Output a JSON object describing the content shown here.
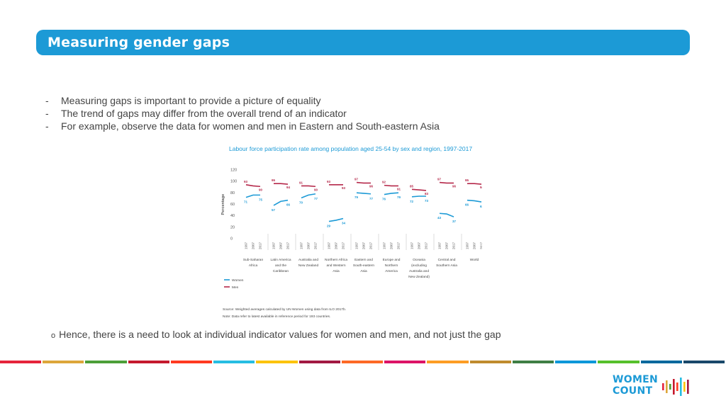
{
  "header": {
    "title": "Measuring gender gaps"
  },
  "bullets": [
    "Measuring gaps is important to provide a picture of equality",
    "The trend of gaps may differ from the overall trend of an indicator",
    "For example, observe the data for women and men in Eastern and South-eastern Asia"
  ],
  "bullet_marker": "-",
  "chart_data": {
    "type": "line",
    "title": "Labour force participation rate among population aged 25-54 by sex and region, 1997-2017",
    "ylabel": "Percentage",
    "ylim": [
      0,
      120
    ],
    "yticks": [
      0,
      20,
      40,
      60,
      80,
      100,
      120
    ],
    "years": [
      "1997",
      "2007",
      "2017"
    ],
    "regions": [
      {
        "label": [
          "Sub-Saharan",
          "Africa"
        ],
        "women": [
          71,
          75,
          75
        ],
        "men": [
          93,
          91,
          90
        ],
        "women_labels": [
          "71",
          "75"
        ],
        "men_labels": [
          "93",
          "90"
        ]
      },
      {
        "label": [
          "Latin America",
          "and the",
          "Caribbean"
        ],
        "women": [
          57,
          64,
          66
        ],
        "men": [
          95,
          95,
          94
        ],
        "women_labels": [
          "57",
          "66"
        ],
        "men_labels": [
          "95",
          "94"
        ]
      },
      {
        "label": [
          "Australia and",
          "New Zealand"
        ],
        "women": [
          70,
          75,
          77
        ],
        "men": [
          91,
          91,
          90
        ],
        "women_labels": [
          "70",
          "77"
        ],
        "men_labels": [
          "91",
          "90"
        ]
      },
      {
        "label": [
          "Northern Africa",
          "and Western",
          "Asia"
        ],
        "women": [
          29,
          31,
          34
        ],
        "men": [
          93,
          93,
          93
        ],
        "women_labels": [
          "29",
          "34"
        ],
        "men_labels": [
          "93",
          "93"
        ]
      },
      {
        "label": [
          "Eastern and",
          "South-eastern",
          "Asia"
        ],
        "women": [
          79,
          78,
          77
        ],
        "men": [
          97,
          96,
          96
        ],
        "women_labels": [
          "79",
          "77"
        ],
        "men_labels": [
          "97",
          "96"
        ]
      },
      {
        "label": [
          "Europe and",
          "Northern",
          "America"
        ],
        "women": [
          76,
          78,
          79
        ],
        "men": [
          92,
          91,
          91
        ],
        "women_labels": [
          "76",
          "79"
        ],
        "men_labels": [
          "92",
          "91"
        ]
      },
      {
        "label": [
          "Oceania",
          "(excluding",
          "Australia and",
          "New Zealand)"
        ],
        "women": [
          72,
          73,
          73
        ],
        "men": [
          85,
          84,
          83
        ],
        "women_labels": [
          "72",
          "73"
        ],
        "men_labels": [
          "85",
          "83"
        ]
      },
      {
        "label": [
          "Central and",
          "Southern Asia"
        ],
        "women": [
          43,
          42,
          37
        ],
        "men": [
          97,
          96,
          96
        ],
        "women_labels": [
          "43",
          "37"
        ],
        "men_labels": [
          "97",
          "96"
        ]
      },
      {
        "label": [
          "World"
        ],
        "women": [
          66,
          65,
          63
        ],
        "men": [
          95,
          95,
          94
        ],
        "women_labels": [
          "66",
          "63"
        ],
        "men_labels": [
          "95",
          "94"
        ]
      }
    ],
    "series": [
      {
        "name": "Women",
        "color": "#1c9ad6"
      },
      {
        "name": "Men",
        "color": "#b5284a"
      }
    ],
    "source": "Source: Weighted averages calculated by UN Women using data from ILO 2017b.",
    "note": "Note: Data refer to latest available in reference period for 193 countries."
  },
  "conclusion": {
    "marker": "o",
    "text": "Hence, there is a need to look at individual indicator values for women and men, and not just the gap"
  },
  "footer": {
    "strip_colors": [
      "#e5243b",
      "#dda63a",
      "#4c9f38",
      "#c5192d",
      "#ff3a21",
      "#26bde2",
      "#fcc30b",
      "#a21942",
      "#fd6925",
      "#dd1367",
      "#fd9d24",
      "#bf8b2e",
      "#3f7e44",
      "#0a97d9",
      "#56c02b",
      "#00689d",
      "#19486a"
    ],
    "logo_line1": "WOMEN",
    "logo_line2": "COUNT",
    "logo_bar_colors": [
      "#e5243b",
      "#dda63a",
      "#4c9f38",
      "#c5192d",
      "#ff3a21",
      "#26bde2",
      "#fcc30b",
      "#a21942"
    ]
  }
}
